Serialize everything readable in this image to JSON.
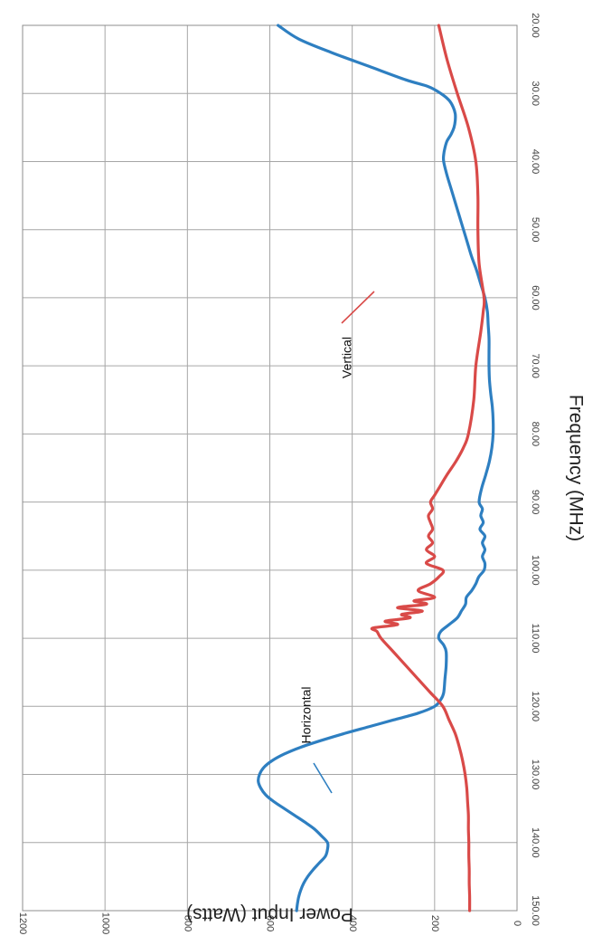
{
  "chart_data": {
    "type": "line",
    "xlabel": "Frequency (MHz)",
    "ylabel": "Power Input (Watts)",
    "xlim": [
      20,
      150
    ],
    "ylim": [
      0,
      1200
    ],
    "x_ticks": [
      "20.00",
      "30.00",
      "40.00",
      "50.00",
      "60.00",
      "70.00",
      "80.00",
      "90.00",
      "100.00",
      "110.00",
      "120.00",
      "130.00",
      "140.00",
      "150.00"
    ],
    "y_ticks": [
      "0",
      "200",
      "400",
      "600",
      "800",
      "1000",
      "1200"
    ],
    "grid": true,
    "orientation": "rotated-90-clockwise",
    "series": [
      {
        "name": "Horizontal",
        "color": "#2e7fc1",
        "x": [
          20,
          22,
          24,
          26,
          28,
          29,
          30,
          31,
          32,
          33,
          34,
          35,
          36,
          37,
          38,
          39,
          40,
          42,
          44,
          46,
          48,
          50,
          52,
          54,
          56,
          58,
          60,
          62,
          64,
          66,
          68,
          70,
          72,
          74,
          76,
          78,
          80,
          82,
          84,
          86,
          88,
          90,
          91,
          92,
          93,
          94,
          95,
          96,
          97,
          98,
          99,
          100,
          101,
          102,
          103,
          104,
          105,
          106,
          107,
          108,
          109,
          110,
          111,
          112,
          114,
          116,
          118,
          119,
          120,
          121,
          122,
          123,
          124,
          125,
          126,
          127,
          128,
          129,
          130,
          131,
          132,
          133,
          134,
          135,
          136,
          137,
          138,
          139,
          140,
          141,
          142,
          143,
          144,
          145,
          146,
          147,
          148,
          149,
          150
        ],
        "y": [
          580,
          530,
          450,
          360,
          270,
          215,
          185,
          165,
          155,
          150,
          150,
          153,
          160,
          170,
          175,
          178,
          178,
          170,
          160,
          150,
          140,
          130,
          120,
          110,
          98,
          88,
          78,
          72,
          70,
          68,
          68,
          68,
          67,
          64,
          60,
          58,
          58,
          61,
          67,
          76,
          86,
          92,
          84,
          88,
          82,
          90,
          78,
          84,
          78,
          84,
          78,
          80,
          93,
          100,
          110,
          123,
          125,
          135,
          145,
          165,
          185,
          190,
          178,
          172,
          172,
          175,
          178,
          185,
          200,
          240,
          300,
          360,
          420,
          475,
          525,
          565,
          595,
          615,
          625,
          628,
          622,
          610,
          590,
          565,
          540,
          515,
          492,
          475,
          460,
          460,
          465,
          480,
          495,
          508,
          518,
          525,
          530,
          533,
          535
        ],
        "label_annotation": "Horizontal"
      },
      {
        "name": "Vertical",
        "color": "#d94a48",
        "x": [
          20,
          25,
          30,
          35,
          40,
          45,
          50,
          55,
          60,
          62,
          65,
          70,
          75,
          80,
          82,
          84,
          86,
          88,
          89,
          90,
          91,
          92,
          93,
          94,
          95,
          96,
          97,
          98,
          99,
          100,
          101,
          102,
          103,
          104,
          104.5,
          105,
          105.5,
          106,
          106.5,
          107,
          107.5,
          108,
          108.5,
          109,
          110,
          112,
          114,
          116,
          118,
          120,
          122,
          124,
          126,
          128,
          130,
          132,
          134,
          136,
          138,
          140,
          142,
          144,
          146,
          148,
          150
        ],
        "y": [
          190,
          170,
          145,
          118,
          100,
          95,
          95,
          92,
          80,
          82,
          88,
          100,
          105,
          118,
          130,
          148,
          170,
          190,
          200,
          210,
          205,
          215,
          210,
          205,
          215,
          205,
          220,
          200,
          220,
          180,
          190,
          210,
          240,
          200,
          250,
          220,
          290,
          230,
          280,
          260,
          320,
          290,
          350,
          340,
          330,
          300,
          270,
          240,
          210,
          180,
          165,
          150,
          140,
          132,
          126,
          122,
          120,
          118,
          118,
          117,
          117,
          116,
          116,
          115,
          115
        ],
        "label_annotation": "Vertical"
      }
    ]
  }
}
